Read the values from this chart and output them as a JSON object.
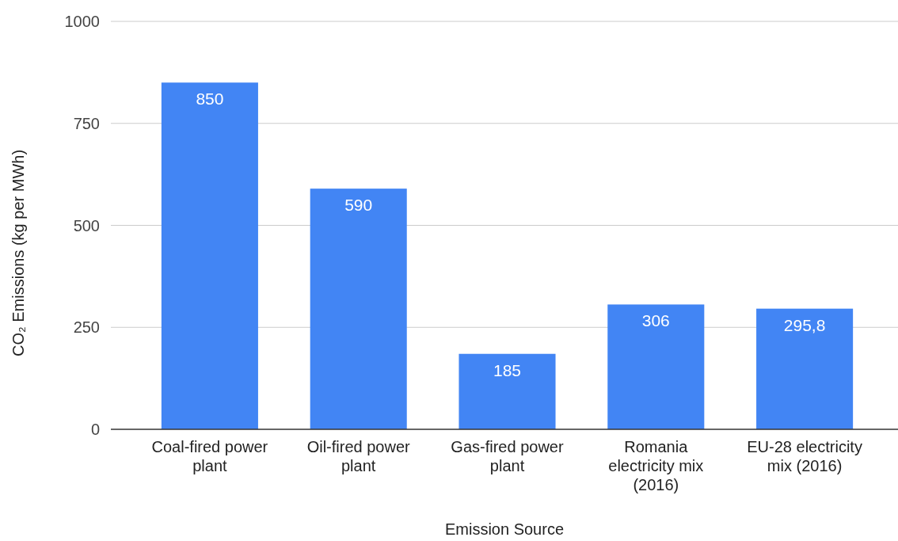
{
  "chart_data": {
    "type": "bar",
    "xlabel": "Emission Source",
    "ylabel": "CO₂ Emissions (kg per MWh)",
    "categories": [
      "Coal-fired power plant",
      "Oil-fired power plant",
      "Gas-fired power plant",
      "Romania electricity mix (2016)",
      "EU-28 electricity mix (2016)"
    ],
    "values": [
      850,
      590,
      185,
      306,
      295.8
    ],
    "value_labels": [
      "850",
      "590",
      "185",
      "306",
      "295,8"
    ],
    "color": "#4285f4",
    "ylim": [
      0,
      1000
    ],
    "yticks": [
      0,
      250,
      500,
      750,
      1000
    ],
    "grid": "y"
  }
}
